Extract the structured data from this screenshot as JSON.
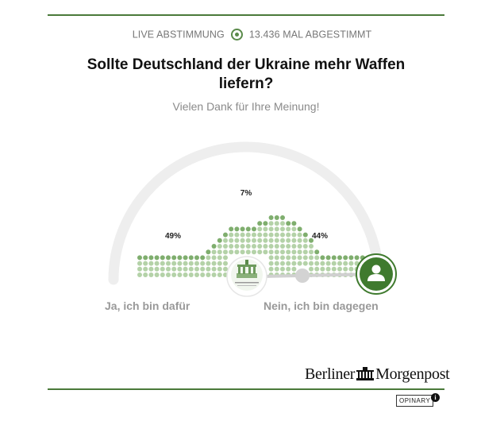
{
  "status": {
    "live_label": "LIVE ABSTIMMUNG",
    "votes_label": "13.436 MAL ABGESTIMMT"
  },
  "question": "Sollte Deutschland der Ukraine mehr Waffen liefern?",
  "thanks": "Vielen Dank für Ihre Meinung!",
  "results": {
    "yes_pct": "49%",
    "middle_pct": "7%",
    "no_pct": "44%"
  },
  "answers": {
    "yes_label": "Ja, ich bin dafür",
    "no_label": "Nein, ich bin dagegen"
  },
  "slider_value": 1.0,
  "brand": {
    "name_part1": "Berliner",
    "name_part2": "Morgenpost"
  },
  "footer": {
    "opinary": "OPINARY",
    "info": "i"
  },
  "colors": {
    "accent": "#4a7a3a",
    "dot_light": "#b4d2a8",
    "dot_dark": "#7fae6e",
    "arc": "#eeeeee",
    "avatar": "#3f7a2e"
  }
}
